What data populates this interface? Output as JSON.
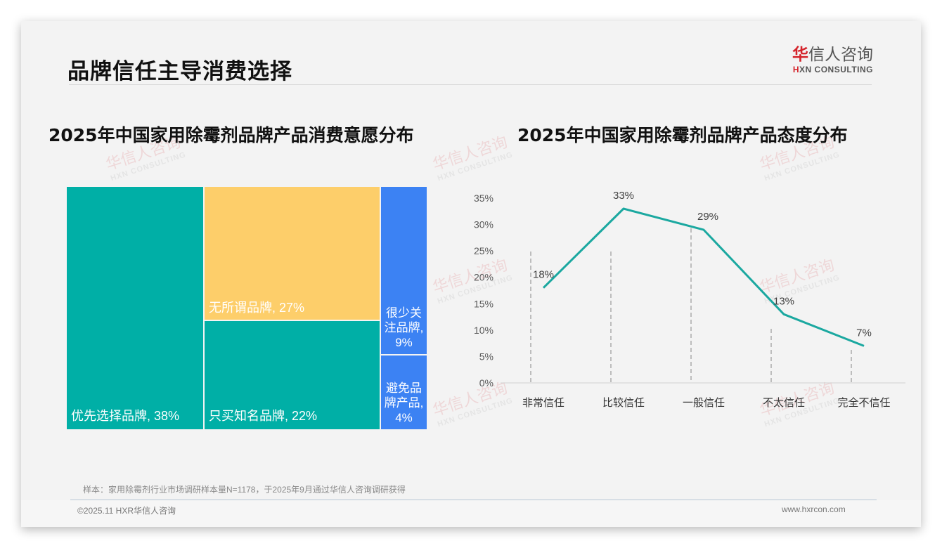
{
  "header": {
    "title": "品牌信任主导消费选择",
    "logo": {
      "cn_red": "华",
      "cn_rest": "信人咨询",
      "en_red": "H",
      "en_rest": "XN CONSULTING"
    }
  },
  "watermark": {
    "cn": "华信人咨询",
    "en": "HXN CONSULTING"
  },
  "colors": {
    "teal": "#00AFA6",
    "yellow": "#FDCE6A",
    "blue": "#3C82F3",
    "line": "#1BA8A0",
    "accent_red": "#D4232A"
  },
  "left_chart": {
    "title": "2025年中国家用除霉剂品牌产品消费意愿分布"
  },
  "right_chart": {
    "title": "2025年中国家用除霉剂品牌产品态度分布"
  },
  "chart_data": [
    {
      "type": "treemap",
      "title": "2025年中国家用除霉剂品牌产品消费意愿分布",
      "categories": [
        "优先选择品牌",
        "无所谓品牌",
        "只买知名品牌",
        "很少关注品牌",
        "避免品牌产品"
      ],
      "values": [
        38,
        27,
        22,
        9,
        4
      ],
      "unit": "%",
      "labels": [
        "优先选择品牌, 38%",
        "无所谓品牌, 27%",
        "只买知名品牌, 22%",
        "很少关\n注品牌,\n9%",
        "避免品\n牌产品,\n4%"
      ],
      "colors": [
        "#00AFA6",
        "#FDCE6A",
        "#00AFA6",
        "#3C82F3",
        "#3C82F3"
      ]
    },
    {
      "type": "line",
      "title": "2025年中国家用除霉剂品牌产品态度分布",
      "categories": [
        "非常信任",
        "比较信任",
        "一般信任",
        "不太信任",
        "完全不信任"
      ],
      "series": [
        {
          "name": "态度分布",
          "values": [
            18,
            33,
            29,
            13,
            7
          ]
        }
      ],
      "data_labels": [
        "18%",
        "33%",
        "29%",
        "13%",
        "7%"
      ],
      "xlabel": "",
      "ylabel": "",
      "ylim": [
        0,
        35
      ],
      "yticks": [
        "0%",
        "5%",
        "10%",
        "15%",
        "20%",
        "25%",
        "30%",
        "35%"
      ],
      "grid": false,
      "drop_lines": true,
      "legend": "none"
    }
  ],
  "footer": {
    "note": "样本：家用除霉剂行业市场调研样本量N=1178，于2025年9月通过华信人咨询调研获得",
    "copyright": "©2025.11 HXR华信人咨询",
    "website": "www.hxrcon.com"
  }
}
